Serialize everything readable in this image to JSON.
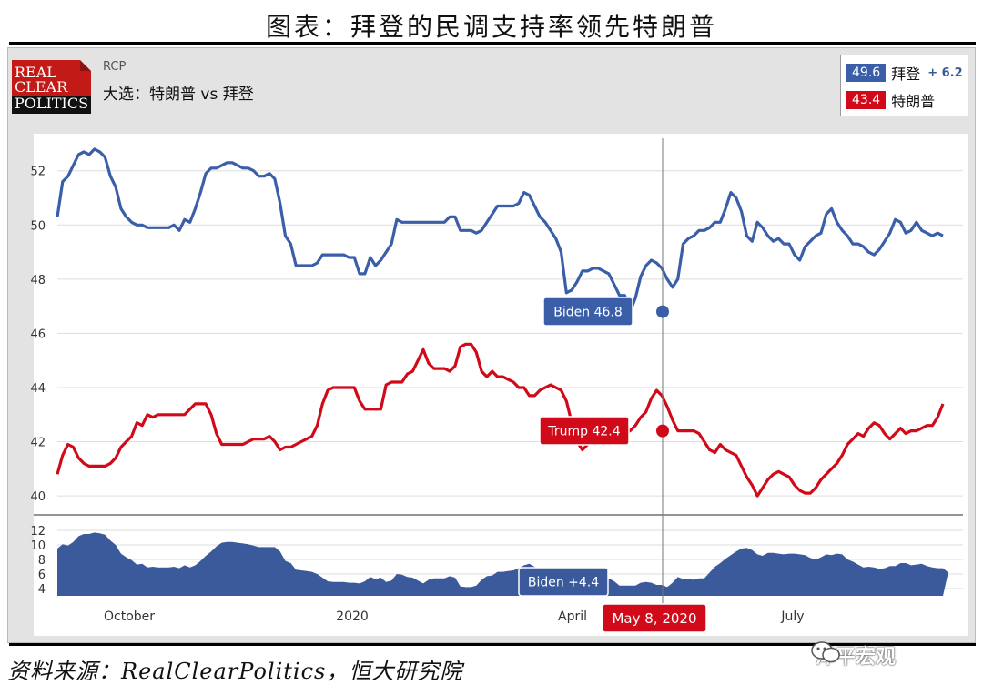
{
  "figure_title": "图表：拜登的民调支持率领先特朗普",
  "source": "资料来源：RealClearPolitics，恒大研究院",
  "watermark": "泽平宏观",
  "logo": {
    "line1": "REAL",
    "line2": "CLEAR",
    "line3": "POLITICS"
  },
  "header": {
    "small": "RCP",
    "main": "大选：特朗普 vs 拜登"
  },
  "legend": {
    "biden": {
      "value": "49.6",
      "name": "拜登",
      "spread": "+ 6.2"
    },
    "trump": {
      "value": "43.4",
      "name": "特朗普"
    }
  },
  "colors": {
    "biden": "#3a5ea8",
    "trump": "#d10a1a",
    "spread_fill": "#3a5a9c",
    "frame": "#e3e3e3"
  },
  "chart_data": {
    "type": "line",
    "x_tick_labels": [
      "October",
      "2020",
      "April",
      "July"
    ],
    "y_main": {
      "ticks": [
        40,
        42,
        44,
        46,
        48,
        50,
        52
      ],
      "ylim": [
        39.5,
        53.2
      ]
    },
    "y_spread": {
      "ticks": [
        4,
        6,
        8,
        10,
        12
      ],
      "ylim": [
        3,
        13
      ]
    },
    "grid": true,
    "crosshair": {
      "date": "May 8, 2020",
      "biden_label": "Biden 46.8",
      "trump_label": "Trump 42.4",
      "spread_label": "Biden +4.4"
    },
    "series": [
      {
        "name": "拜登",
        "values": [
          50.3,
          51.6,
          51.8,
          52.2,
          52.6,
          52.7,
          52.6,
          52.8,
          52.7,
          52.5,
          51.8,
          51.4,
          50.6,
          50.3,
          50.1,
          50,
          50,
          49.9,
          49.9,
          49.9,
          49.9,
          49.9,
          50,
          49.8,
          50.2,
          50.1,
          50.6,
          51.2,
          51.9,
          52.1,
          52.1,
          52.2,
          52.3,
          52.3,
          52.2,
          52.1,
          52.1,
          52,
          51.8,
          51.8,
          51.9,
          51.7,
          50.8,
          49.6,
          49.3,
          48.5,
          48.5,
          48.5,
          48.5,
          48.6,
          48.9,
          48.9,
          48.9,
          48.9,
          48.9,
          48.8,
          48.8,
          48.2,
          48.2,
          48.8,
          48.5,
          48.7,
          49,
          49.3,
          50.2,
          50.1,
          50.1,
          50.1,
          50.1,
          50.1,
          50.1,
          50.1,
          50.1,
          50.1,
          50.3,
          50.3,
          49.8,
          49.8,
          49.8,
          49.7,
          49.8,
          50.1,
          50.4,
          50.7,
          50.7,
          50.7,
          50.7,
          50.8,
          51.2,
          51.1,
          50.7,
          50.3,
          50.1,
          49.8,
          49.5,
          49,
          47.5,
          47.6,
          47.9,
          48.3,
          48.3,
          48.4,
          48.4,
          48.3,
          48.2,
          47.8,
          47.4,
          47.4,
          46.8,
          47.3,
          48.1,
          48.5,
          48.7,
          48.6,
          48.4,
          48,
          47.7,
          48,
          49.3,
          49.5,
          49.6,
          49.8,
          49.8,
          49.9,
          50.1,
          50.1,
          50.6,
          51.2,
          51,
          50.5,
          49.6,
          49.4,
          50.1,
          49.9,
          49.6,
          49.4,
          49.5,
          49.3,
          49.3,
          48.9,
          48.7,
          49.2,
          49.4,
          49.6,
          49.7,
          50.4,
          50.6,
          50.1,
          49.8,
          49.6,
          49.3,
          49.3,
          49.2,
          49,
          48.9,
          49.1,
          49.4,
          49.7,
          50.2,
          50.1,
          49.7,
          49.8,
          50.1,
          49.8,
          49.7,
          49.6,
          49.7,
          49.6
        ]
      },
      {
        "name": "特朗普",
        "values": [
          40.8,
          41.5,
          41.9,
          41.8,
          41.4,
          41.2,
          41.1,
          41.1,
          41.1,
          41.1,
          41.2,
          41.4,
          41.8,
          42,
          42.2,
          42.7,
          42.6,
          43,
          42.9,
          43,
          43,
          43,
          43,
          43,
          43,
          43.2,
          43.4,
          43.4,
          43.4,
          43,
          42.3,
          41.9,
          41.9,
          41.9,
          41.9,
          41.9,
          42,
          42.1,
          42.1,
          42.1,
          42.2,
          42,
          41.7,
          41.8,
          41.8,
          41.9,
          42,
          42.1,
          42.2,
          42.6,
          43.4,
          43.9,
          44,
          44,
          44,
          44,
          44,
          43.5,
          43.2,
          43.2,
          43.2,
          43.2,
          44.1,
          44.2,
          44.2,
          44.2,
          44.5,
          44.6,
          45,
          45.4,
          44.9,
          44.7,
          44.7,
          44.7,
          44.6,
          44.8,
          45.5,
          45.6,
          45.6,
          45.3,
          44.6,
          44.4,
          44.6,
          44.4,
          44.4,
          44.3,
          44.2,
          44,
          44,
          43.7,
          43.7,
          43.9,
          44,
          44.1,
          44,
          43.9,
          43.5,
          42.7,
          42,
          41.7,
          41.9,
          42.2,
          42.5,
          42.5,
          42.3,
          42.2,
          42.4,
          42.3,
          42.4,
          42.6,
          42.9,
          43.1,
          43.6,
          43.9,
          43.7,
          43.3,
          42.8,
          42.4,
          42.4,
          42.4,
          42.4,
          42.3,
          42,
          41.7,
          41.6,
          41.9,
          41.7,
          41.6,
          41.5,
          41.1,
          40.7,
          40.4,
          40,
          40.3,
          40.6,
          40.8,
          40.9,
          40.8,
          40.7,
          40.4,
          40.2,
          40.1,
          40.1,
          40.3,
          40.6,
          40.8,
          41,
          41.2,
          41.5,
          41.9,
          42.1,
          42.3,
          42.2,
          42.5,
          42.7,
          42.6,
          42.3,
          42.1,
          42.3,
          42.5,
          42.3,
          42.4,
          42.4,
          42.5,
          42.6,
          42.6,
          42.9,
          43.4
        ]
      },
      {
        "name": "Biden spread",
        "values": [
          9.5,
          10.1,
          9.9,
          10.4,
          11.2,
          11.5,
          11.5,
          11.7,
          11.6,
          11.4,
          10.6,
          10,
          8.8,
          8.3,
          7.9,
          7.3,
          7.4,
          6.9,
          7,
          6.9,
          6.9,
          6.9,
          7,
          6.8,
          7.2,
          6.9,
          7.2,
          7.8,
          8.5,
          9.1,
          9.8,
          10.3,
          10.4,
          10.4,
          10.3,
          10.2,
          10.1,
          9.9,
          9.7,
          9.7,
          9.7,
          9.7,
          9.1,
          7.8,
          7.5,
          6.6,
          6.5,
          6.4,
          6.3,
          6,
          5.5,
          5,
          4.9,
          4.9,
          4.9,
          4.8,
          4.8,
          4.7,
          5,
          5.6,
          5.3,
          5.5,
          4.9,
          5.1,
          6,
          5.9,
          5.6,
          5.5,
          5.1,
          4.7,
          5.2,
          5.4,
          5.4,
          5.4,
          5.7,
          5.5,
          4.3,
          4.2,
          4.2,
          4.4,
          5.2,
          5.7,
          5.8,
          6.3,
          6.3,
          6.4,
          6.5,
          6.8,
          7.2,
          7.4,
          7,
          6.4,
          5.6,
          4.7,
          4.6,
          4.5,
          4.5,
          4.9,
          5.2,
          5.6,
          5.8,
          5.9,
          5.7,
          5.5,
          5.4,
          5,
          4.4,
          4.4,
          4.4,
          4.4,
          4.8,
          4.9,
          4.8,
          4.5,
          4.5,
          4.2,
          4.8,
          5.6,
          5.3,
          5.3,
          5.2,
          5.4,
          5.4,
          6.2,
          7,
          7.5,
          8.1,
          8.6,
          9.1,
          9.5,
          9.6,
          9.3,
          8.7,
          8.5,
          8.9,
          8.9,
          8.8,
          8.7,
          8.8,
          8.8,
          8.7,
          8.6,
          8.2,
          8,
          8.3,
          8.7,
          8.6,
          8.8,
          8.7,
          8,
          7.7,
          7.3,
          6.9,
          7,
          6.9,
          6.7,
          6.8,
          7.1,
          7.1,
          7.5,
          7.5,
          7.2,
          7.3,
          7.4,
          7.1,
          6.9,
          6.8,
          6.8,
          6.2
        ]
      }
    ]
  }
}
